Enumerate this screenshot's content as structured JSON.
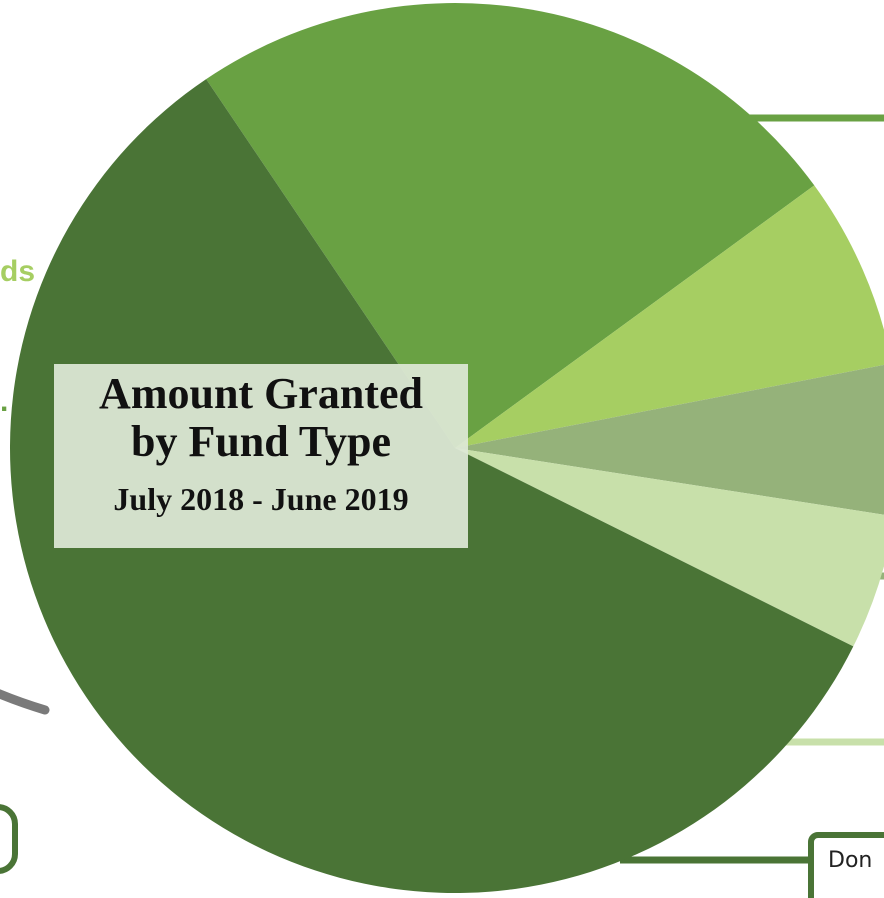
{
  "chart_data": {
    "type": "pie",
    "title": "Amount Granted by Fund Type",
    "subtitle": "July 2018 - June 2019",
    "series": [
      {
        "share": 58.2,
        "color": "#4a7436"
      },
      {
        "share": 24.4,
        "color": "#69a143"
      },
      {
        "share": 7.0,
        "color": "#a6ce62"
      },
      {
        "share": 5.5,
        "color": "#95b27a"
      },
      {
        "share": 4.9,
        "color": "#c8e0aa"
      }
    ]
  },
  "side_labels": {
    "fragment_ds": "ds",
    "fragment_dot": "."
  },
  "donor_box": {
    "text": "Don"
  },
  "colors": {
    "leader_dark": "#4a7436",
    "leader_mid": "#69a143",
    "leader_light": "#c8e0aa",
    "accent_text": "#a6ce62",
    "gray_stroke": "#7a7a7a"
  }
}
